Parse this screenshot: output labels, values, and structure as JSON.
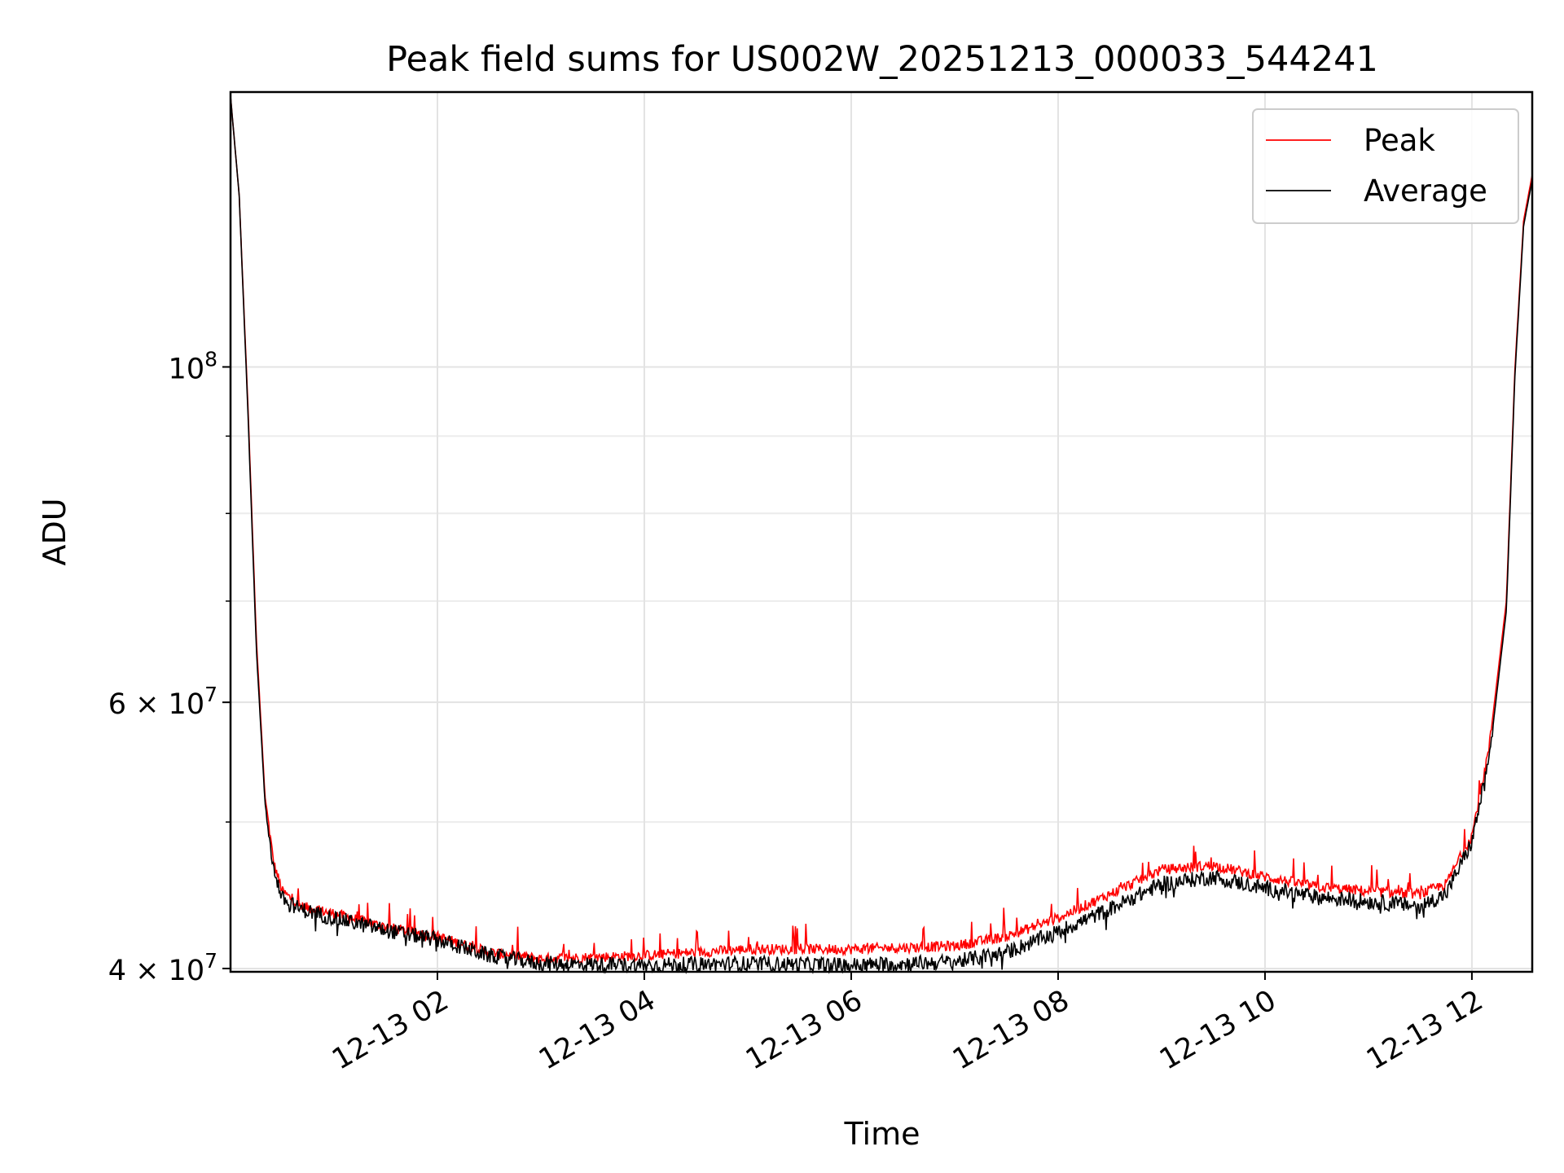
{
  "chart_data": {
    "type": "line",
    "title": "Peak field sums for US002W_20251213_000033_544241",
    "xlabel": "Time",
    "ylabel": "ADU",
    "yscale": "log",
    "grid": true,
    "legend_position": "upper-right",
    "xlim": [
      "2025-12-13T00:00",
      "2025-12-13T12:35"
    ],
    "ylim": [
      39800000,
      152000000
    ],
    "x_ticks": [
      {
        "value": "2025-12-13T02:00",
        "label": "12-13 02"
      },
      {
        "value": "2025-12-13T04:00",
        "label": "12-13 04"
      },
      {
        "value": "2025-12-13T06:00",
        "label": "12-13 06"
      },
      {
        "value": "2025-12-13T08:00",
        "label": "12-13 08"
      },
      {
        "value": "2025-12-13T10:00",
        "label": "12-13 10"
      },
      {
        "value": "2025-12-13T12:00",
        "label": "12-13 12"
      }
    ],
    "y_ticks": [
      {
        "value": 40000000,
        "base": "4",
        "exp": "7"
      },
      {
        "value": 60000000,
        "base": "6",
        "exp": "7"
      },
      {
        "value": 100000000,
        "base": "",
        "exp": "8"
      }
    ],
    "y_minor_ticks": [
      50000000,
      70000000,
      80000000,
      90000000
    ],
    "series": [
      {
        "name": "Peak",
        "color": "#ff0000",
        "points": [
          [
            "2025-12-13T00:00",
            151000000
          ],
          [
            "2025-12-13T00:05",
            130000000
          ],
          [
            "2025-12-13T00:10",
            95000000
          ],
          [
            "2025-12-13T00:15",
            66000000
          ],
          [
            "2025-12-13T00:20",
            52000000
          ],
          [
            "2025-12-13T00:25",
            47000000
          ],
          [
            "2025-12-13T00:30",
            45000000
          ],
          [
            "2025-12-13T00:40",
            44000000
          ],
          [
            "2025-12-13T01:00",
            43500000
          ],
          [
            "2025-12-13T01:30",
            42600000
          ],
          [
            "2025-12-13T02:00",
            42000000
          ],
          [
            "2025-12-13T02:30",
            41000000
          ],
          [
            "2025-12-13T03:00",
            40600000
          ],
          [
            "2025-12-13T04:00",
            40800000
          ],
          [
            "2025-12-13T05:00",
            41200000
          ],
          [
            "2025-12-13T06:00",
            41200000
          ],
          [
            "2025-12-13T07:00",
            41400000
          ],
          [
            "2025-12-13T07:30",
            42000000
          ],
          [
            "2025-12-13T08:00",
            43200000
          ],
          [
            "2025-12-13T08:30",
            44800000
          ],
          [
            "2025-12-13T09:00",
            46500000
          ],
          [
            "2025-12-13T09:30",
            46800000
          ],
          [
            "2025-12-13T10:00",
            46000000
          ],
          [
            "2025-12-13T10:30",
            45300000
          ],
          [
            "2025-12-13T11:00",
            45000000
          ],
          [
            "2025-12-13T11:30",
            44800000
          ],
          [
            "2025-12-13T11:45",
            45500000
          ],
          [
            "2025-12-13T12:00",
            49000000
          ],
          [
            "2025-12-13T12:10",
            56000000
          ],
          [
            "2025-12-13T12:20",
            70000000
          ],
          [
            "2025-12-13T12:25",
            100000000
          ],
          [
            "2025-12-13T12:30",
            125000000
          ],
          [
            "2025-12-13T12:35",
            134000000
          ]
        ]
      },
      {
        "name": "Average",
        "color": "#000000",
        "points": [
          [
            "2025-12-13T00:00",
            151000000
          ],
          [
            "2025-12-13T00:05",
            130000000
          ],
          [
            "2025-12-13T00:10",
            94000000
          ],
          [
            "2025-12-13T00:15",
            65000000
          ],
          [
            "2025-12-13T00:20",
            51500000
          ],
          [
            "2025-12-13T00:25",
            46500000
          ],
          [
            "2025-12-13T00:30",
            44500000
          ],
          [
            "2025-12-13T00:40",
            43800000
          ],
          [
            "2025-12-13T01:00",
            43200000
          ],
          [
            "2025-12-13T01:30",
            42400000
          ],
          [
            "2025-12-13T02:00",
            41800000
          ],
          [
            "2025-12-13T02:30",
            40800000
          ],
          [
            "2025-12-13T03:00",
            40300000
          ],
          [
            "2025-12-13T04:00",
            40200000
          ],
          [
            "2025-12-13T05:00",
            40300000
          ],
          [
            "2025-12-13T06:00",
            40200000
          ],
          [
            "2025-12-13T07:00",
            40400000
          ],
          [
            "2025-12-13T07:30",
            41000000
          ],
          [
            "2025-12-13T08:00",
            42300000
          ],
          [
            "2025-12-13T08:30",
            43800000
          ],
          [
            "2025-12-13T09:00",
            45500000
          ],
          [
            "2025-12-13T09:30",
            46000000
          ],
          [
            "2025-12-13T10:00",
            45200000
          ],
          [
            "2025-12-13T10:30",
            44600000
          ],
          [
            "2025-12-13T11:00",
            44300000
          ],
          [
            "2025-12-13T11:30",
            44000000
          ],
          [
            "2025-12-13T11:45",
            44800000
          ],
          [
            "2025-12-13T12:00",
            48500000
          ],
          [
            "2025-12-13T12:10",
            55000000
          ],
          [
            "2025-12-13T12:20",
            69000000
          ],
          [
            "2025-12-13T12:25",
            99000000
          ],
          [
            "2025-12-13T12:30",
            124000000
          ],
          [
            "2025-12-13T12:35",
            133000000
          ]
        ]
      }
    ]
  }
}
